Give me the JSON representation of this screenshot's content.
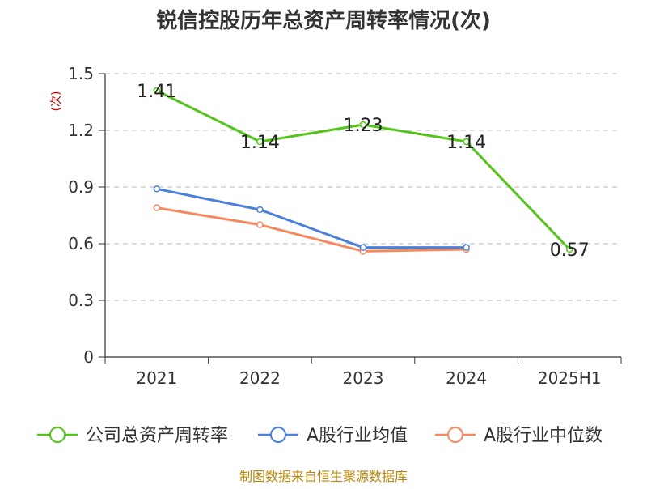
{
  "chart_data": {
    "type": "line",
    "title": "锐信控股历年总资产周转率情况(次)",
    "ylabel": "(次)",
    "xlabel": "",
    "categories": [
      "2021",
      "2022",
      "2023",
      "2024",
      "2025H1"
    ],
    "ylim": [
      0,
      1.5
    ],
    "yticks": [
      "0",
      "0.3",
      "0.6",
      "0.9",
      "1.2",
      "1.5"
    ],
    "ytick_values": [
      0,
      0.3,
      0.6,
      0.9,
      1.2,
      1.5
    ],
    "grid": true,
    "legend_position": "bottom",
    "series": [
      {
        "name": "公司总资产周转率",
        "color": "#52c41a",
        "values": [
          1.41,
          1.14,
          1.23,
          1.14,
          0.57
        ],
        "labels": [
          "1.41",
          "1.14",
          "1.23",
          "1.14",
          "0.57"
        ]
      },
      {
        "name": "A股行业均值",
        "color": "#4a7fdc",
        "values": [
          0.89,
          0.78,
          0.58,
          0.58,
          null
        ]
      },
      {
        "name": "A股行业中位数",
        "color": "#f4895f",
        "values": [
          0.79,
          0.7,
          0.56,
          0.57,
          null
        ]
      }
    ],
    "source": "制图数据来自恒生聚源数据库"
  }
}
